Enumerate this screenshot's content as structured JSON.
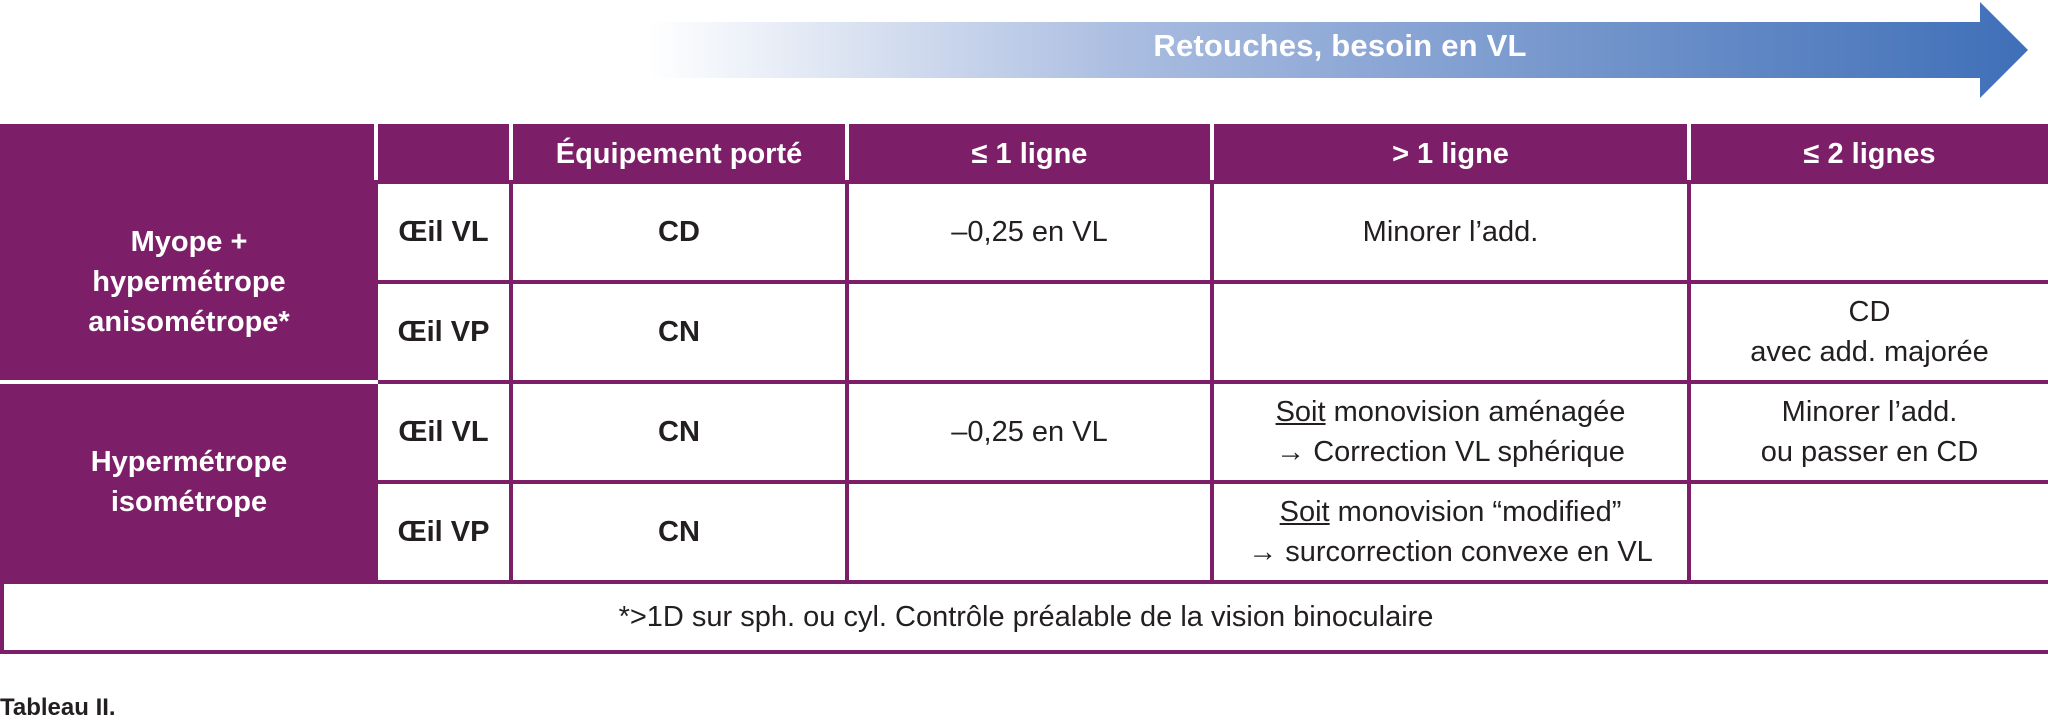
{
  "arrow": {
    "label": "Retouches, besoin en VL",
    "color_start": "#ffffff",
    "color_end": "#3f6fb8"
  },
  "table": {
    "headers": [
      "",
      "",
      "Équipement porté",
      "≤ 1 ligne",
      "> 1 ligne",
      "≤ 2 lignes"
    ],
    "groups": [
      {
        "label_lines": [
          "Myope +",
          "hypermétrope",
          "anisométrope*"
        ]
      },
      {
        "label_lines": [
          "Hypermétrope",
          "isométrope"
        ]
      }
    ],
    "rows": [
      {
        "eye": "Œil VL",
        "equip": "CD",
        "c1": "–0,25 en VL",
        "c2": {
          "u": "",
          "l1": "Minorer l’add.",
          "l2": ""
        },
        "c3": {
          "l1": "",
          "l2": ""
        }
      },
      {
        "eye": "Œil VP",
        "equip": "CN",
        "c1": "",
        "c2": {
          "u": "",
          "l1": "",
          "l2": ""
        },
        "c3": {
          "l1": "CD",
          "l2": "avec add. majorée"
        }
      },
      {
        "eye": "Œil VL",
        "equip": "CN",
        "c1": "–0,25 en VL",
        "c2": {
          "u": "Soit",
          "l1": " monovision aménagée",
          "l2": "→ Correction VL sphérique"
        },
        "c3": {
          "l1": "Minorer l’add.",
          "l2": "ou passer en CD"
        }
      },
      {
        "eye": "Œil VP",
        "equip": "CN",
        "c1": "",
        "c2": {
          "u": "Soit",
          "l1": " monovision “modified”",
          "l2": "→ surcorrection convexe en VL"
        },
        "c3": {
          "l1": "",
          "l2": ""
        }
      }
    ],
    "footnote": "*>1D sur sph. ou cyl. Contrôle préalable de la vision binoculaire"
  },
  "caption": "Tableau II.",
  "colors": {
    "table_purple": "#7d1f68"
  }
}
